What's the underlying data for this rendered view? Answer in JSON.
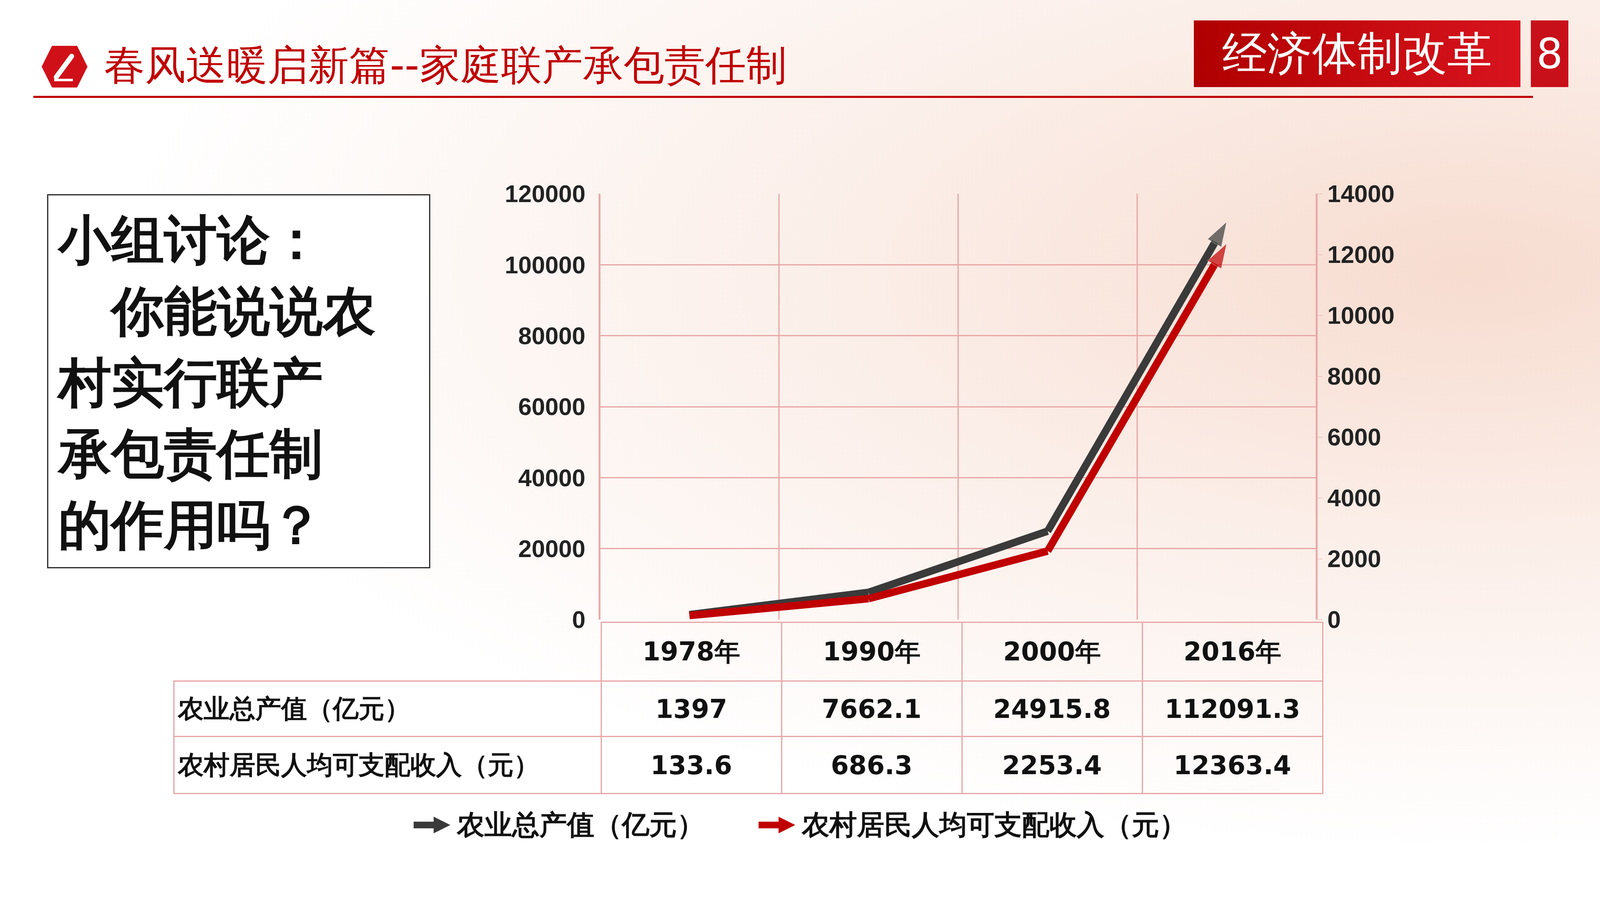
{
  "header": {
    "title": "春风送暖启新篇--家庭联产承包责任制",
    "section": "经济体制改革",
    "page": "8"
  },
  "discussion": {
    "heading": "小组讨论：",
    "lines": [
      "你能说说农",
      "村实行联产",
      "承包责任制",
      "的作用吗？"
    ]
  },
  "chart_data": {
    "type": "line",
    "categories": [
      "1978年",
      "1990年",
      "2000年",
      "2016年"
    ],
    "series": [
      {
        "name": "农业总产值（亿元）",
        "color": "#3a3a3a",
        "values": [
          1397,
          7662.1,
          24915.8,
          112091.3
        ],
        "marker": "arrow"
      },
      {
        "name": "农村居民人均可支配收入（元）",
        "color": "#c00000",
        "values": [
          133.6,
          686.3,
          2253.4,
          12363.4
        ],
        "axis": "y2",
        "marker": "arrow"
      }
    ],
    "ylim": [
      0,
      120000
    ],
    "yticks": [
      0,
      20000,
      40000,
      60000,
      80000,
      100000,
      120000
    ],
    "y2lim": [
      0,
      14000
    ],
    "y2ticks": [
      0,
      2000,
      4000,
      6000,
      8000,
      10000,
      12000,
      14000
    ],
    "grid": true,
    "legend": "bottom",
    "tick_labels": "y"
  }
}
